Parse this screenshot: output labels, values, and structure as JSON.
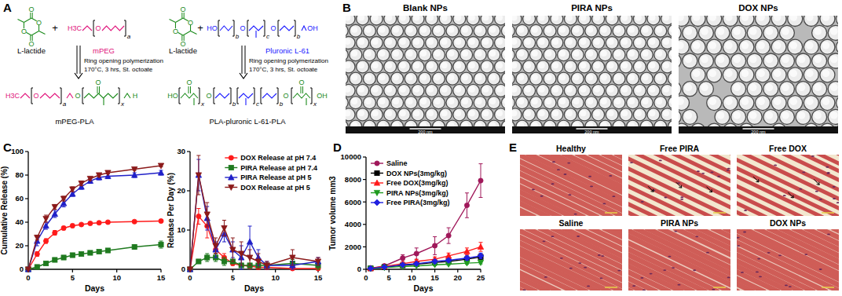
{
  "panel_labels": [
    "A",
    "B",
    "C",
    "D",
    "E"
  ],
  "scheme": {
    "left": {
      "lactide": {
        "label": "L-lactide",
        "atoms": [
          "O",
          "O",
          "O",
          "O"
        ]
      },
      "plus": "+",
      "polymer": {
        "label": "mPEG",
        "atoms": [
          "H3C",
          "O",
          "a"
        ]
      },
      "reaction": "Ring opening polymerization",
      "conditions": "170°C, 3 hrs, St. octoate",
      "product": {
        "label": "mPEG-PLA",
        "atoms": [
          "H3C",
          "O",
          "a",
          "O",
          "O",
          "x",
          "H"
        ]
      }
    },
    "right": {
      "lactide": {
        "label": "L-lactide",
        "atoms": [
          "O",
          "O",
          "O",
          "O"
        ]
      },
      "plus": "+",
      "polymer": {
        "label": "Pluronic L-61",
        "atoms": [
          "HO",
          "O",
          "O",
          "OH",
          "b",
          "c",
          "b"
        ]
      },
      "reaction": "Ring opening polymerization",
      "conditions": "170°C, 3 hrs, St. octoate",
      "product": {
        "label": "PLA-pluronic L-61-PLA",
        "atoms": [
          "HO",
          "O",
          "O",
          "O",
          "O",
          "OH",
          "x",
          "b",
          "c",
          "b",
          "x"
        ]
      }
    }
  },
  "tem": {
    "images": [
      {
        "title": "Blank NPs",
        "scale_bar": "200 nm"
      },
      {
        "title": "PIRA NPs",
        "scale_bar": "200 nm"
      },
      {
        "title": "DOX NPs",
        "scale_bar": "200 nm"
      }
    ]
  },
  "histology": {
    "images": [
      "Healthy",
      "Free PIRA",
      "Free DOX",
      "Saline",
      "PIRA NPs",
      "DOX NPs"
    ]
  },
  "chart_data": [
    {
      "type": "line",
      "x_label": "Days",
      "y_label": "Cumulative Release (%)",
      "x": [
        0,
        1,
        2,
        3,
        4,
        5,
        6,
        7,
        8,
        9,
        12,
        15
      ],
      "xlim": [
        0,
        15
      ],
      "xticks": [
        0,
        5,
        10,
        15
      ],
      "ylim": [
        0,
        100
      ],
      "yticks": [
        0,
        20,
        40,
        60,
        80,
        100
      ],
      "series": [
        {
          "color": "#ff1a1a",
          "marker": "circle",
          "values": [
            0,
            13,
            24,
            31,
            35,
            37,
            38,
            39,
            39.5,
            40,
            40.5,
            41
          ],
          "errors": [
            0,
            2,
            2,
            2,
            1.5,
            1.5,
            1,
            1,
            1,
            1,
            1,
            1
          ]
        },
        {
          "color": "#1f7a1f",
          "marker": "square",
          "values": [
            0,
            2,
            5,
            8,
            10,
            12,
            13,
            14,
            15,
            16,
            19,
            21
          ],
          "errors": [
            0,
            1,
            1,
            1,
            1,
            1,
            1,
            1,
            1,
            1,
            2,
            3
          ]
        },
        {
          "color": "#2020c8",
          "marker": "triangle",
          "values": [
            0,
            24,
            37,
            47,
            56,
            64,
            70,
            75,
            78,
            79,
            80,
            82
          ],
          "errors": [
            0,
            4,
            3,
            3,
            3,
            2,
            2,
            2,
            2,
            2,
            2,
            2
          ]
        },
        {
          "color": "#8b1a1a",
          "marker": "triangle-down",
          "values": [
            0,
            27,
            43,
            53,
            60,
            68,
            73,
            77,
            80,
            82,
            85,
            88
          ],
          "errors": [
            0,
            2,
            3,
            2,
            2,
            2,
            2,
            1.5,
            1.5,
            1,
            1,
            1
          ]
        }
      ]
    },
    {
      "type": "line",
      "x_label": "Days",
      "y_label": "Release Per Day (%)",
      "x": [
        0,
        1,
        2,
        3,
        4,
        5,
        6,
        7,
        8,
        9,
        12,
        15
      ],
      "xlim": [
        0,
        15
      ],
      "xticks": [
        0,
        5,
        10,
        15
      ],
      "ylim": [
        0,
        30
      ],
      "yticks": [
        0,
        10,
        20,
        30
      ],
      "legend": "top-right",
      "series": [
        {
          "name": "DOX Release at pH 7.4",
          "color": "#ff1a1a",
          "marker": "circle",
          "values": [
            0,
            13.5,
            11,
            5,
            3,
            1.5,
            1,
            0.8,
            0.5,
            0.5,
            0.2,
            0.2
          ],
          "errors": [
            0,
            2,
            3,
            1,
            1,
            0.5,
            0.5,
            0.5,
            0.5,
            0.5,
            0.2,
            0.2
          ]
        },
        {
          "name": "PIRA Release at pH 7.4",
          "color": "#1f7a1f",
          "marker": "square",
          "values": [
            0,
            2,
            3,
            3,
            2,
            2,
            1,
            1,
            1,
            1,
            1.5,
            1
          ],
          "errors": [
            0,
            0.5,
            1,
            1,
            1,
            0.5,
            0.5,
            0.5,
            0.5,
            0.5,
            1,
            1
          ]
        },
        {
          "name": "PIRA Release at pH 5",
          "color": "#2020c8",
          "marker": "triangle",
          "values": [
            0,
            24,
            13,
            5,
            9,
            5,
            3,
            7,
            3,
            1,
            1,
            2
          ],
          "errors": [
            0,
            4,
            3,
            2,
            2,
            2,
            3,
            4,
            2,
            1,
            1,
            1
          ]
        },
        {
          "name": "DOX Release at pH 5",
          "color": "#8b1a1a",
          "marker": "triangle-down",
          "values": [
            0,
            24,
            14,
            6,
            10.5,
            5,
            4,
            3,
            2,
            1,
            3,
            2
          ],
          "errors": [
            0,
            5,
            3,
            2,
            2,
            3,
            3,
            2,
            2,
            1,
            2,
            1
          ]
        }
      ]
    },
    {
      "type": "line",
      "x_label": "Days",
      "y_label": "Tumor volume mm3",
      "x": [
        1,
        4,
        8,
        11,
        15,
        18,
        22,
        25
      ],
      "xlim": [
        0,
        25
      ],
      "xticks": [
        0,
        5,
        10,
        15,
        20,
        25
      ],
      "ylim": [
        0,
        10000
      ],
      "yticks": [
        0,
        2000,
        4000,
        6000,
        8000,
        10000
      ],
      "legend": "top-left",
      "series": [
        {
          "name": "Saline",
          "color": "#a0185a",
          "marker": "circle",
          "values": [
            100,
            300,
            1000,
            1400,
            2100,
            3000,
            5700,
            7900
          ],
          "errors": [
            30,
            100,
            300,
            500,
            800,
            700,
            1100,
            1500
          ]
        },
        {
          "name": "DOX NPs(3mg/kg)",
          "color": "#000000",
          "marker": "square",
          "values": [
            80,
            200,
            350,
            450,
            600,
            700,
            900,
            1100
          ],
          "errors": [
            20,
            50,
            80,
            100,
            150,
            150,
            200,
            250
          ]
        },
        {
          "name": "Free DOX(3mg/kg)",
          "color": "#ff1a1a",
          "marker": "triangle",
          "values": [
            90,
            250,
            500,
            700,
            900,
            1200,
            1600,
            2000
          ],
          "errors": [
            20,
            60,
            100,
            150,
            200,
            250,
            300,
            400
          ]
        },
        {
          "name": "PIRA NPs(3mg/kg)",
          "color": "#1f9a1f",
          "marker": "triangle-down",
          "values": [
            70,
            150,
            250,
            300,
            400,
            450,
            550,
            600
          ],
          "errors": [
            20,
            40,
            60,
            60,
            80,
            80,
            100,
            120
          ]
        },
        {
          "name": "Free PIRA(3mg/kg)",
          "color": "#2020e0",
          "marker": "diamond",
          "values": [
            80,
            200,
            400,
            500,
            700,
            800,
            1000,
            1200
          ],
          "errors": [
            20,
            50,
            80,
            100,
            150,
            150,
            200,
            250
          ]
        }
      ]
    }
  ]
}
